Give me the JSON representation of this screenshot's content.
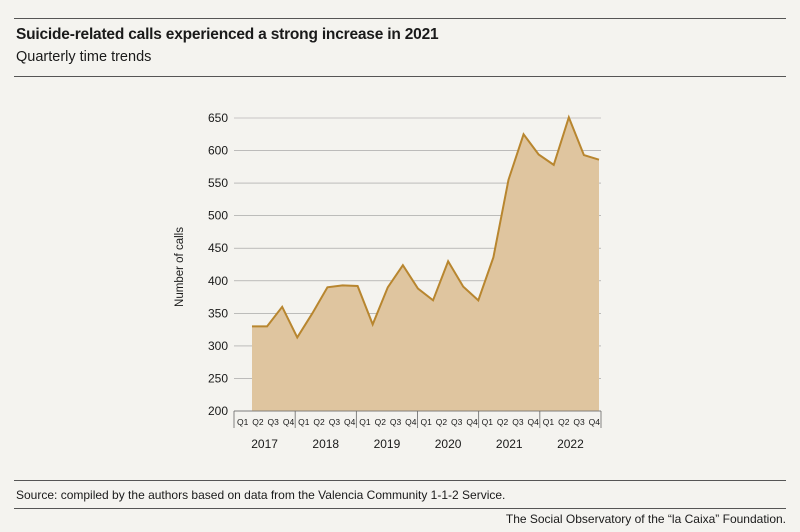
{
  "header": {
    "title": "Suicide-related calls experienced a strong increase in 2021",
    "subtitle": "Quarterly time trends"
  },
  "footer": {
    "source": "Source: compiled by the authors based on data from the Valencia Community 1-1-2 Service.",
    "credit": "The Social Observatory of the “la Caixa” Foundation."
  },
  "colors": {
    "line": "#b8862f",
    "area": "#dfc59f",
    "grid": "#9a9a9a",
    "background": "#f4f3ef"
  },
  "chart_data": {
    "type": "area",
    "title": "Suicide-related calls experienced a strong increase in 2021",
    "subtitle": "Quarterly time trends",
    "xlabel": "",
    "ylabel": "Number of calls",
    "ylim": [
      200,
      650
    ],
    "yticks": [
      200,
      250,
      300,
      350,
      400,
      450,
      500,
      550,
      600,
      650
    ],
    "grid": true,
    "years": [
      "2017",
      "2018",
      "2019",
      "2020",
      "2021",
      "2022"
    ],
    "quarter_labels": [
      "Q1",
      "Q2",
      "Q3",
      "Q4"
    ],
    "series": [
      {
        "values": [
          330,
          330,
          360,
          313,
          350,
          390,
          393,
          392,
          333,
          390,
          424,
          388,
          370,
          430,
          391,
          370,
          436,
          555,
          625,
          594,
          578,
          651,
          593,
          586
        ]
      }
    ]
  }
}
